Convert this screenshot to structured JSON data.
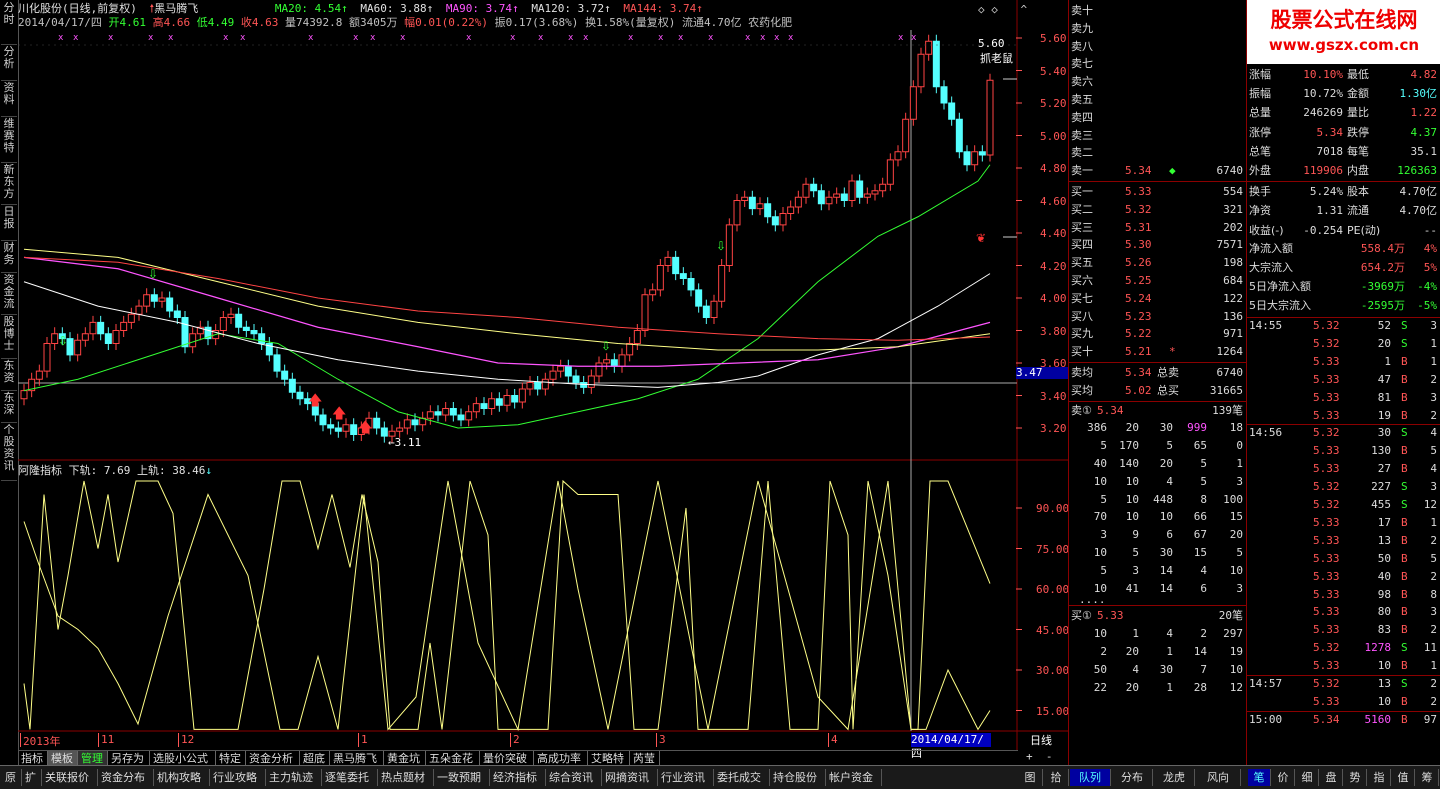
{
  "left_tabs": [
    "分时",
    "分析",
    "资料",
    "维赛特",
    "新东方",
    "日报",
    "财务",
    "资金流",
    "股博士",
    "东资",
    "东深",
    "个股资讯"
  ],
  "header": {
    "title": "川化股份(日线,前复权)",
    "signal": "黑马腾飞",
    "ma20": "MA20: 4.54",
    "ma60": "MA60: 3.88",
    "ma90": "MA90: 3.74",
    "ma120": "MA120: 3.72",
    "ma144": "MA144: 3.74"
  },
  "info": {
    "date": "2014/04/17/四",
    "open": "开4.61",
    "high": "高4.66",
    "low": "低4.49",
    "close": "收4.63",
    "volume": "量74392.8",
    "amount": "额3405万",
    "change": "幅0.01(0.22%)",
    "amplitude": "振0.17(3.68%)",
    "turnover": "换1.58%(量复权)",
    "float": "流通4.70亿",
    "sector": "农药化肥"
  },
  "price_axis": [
    "5.60",
    "5.40",
    "5.20",
    "5.00",
    "4.80",
    "4.60",
    "4.40",
    "4.20",
    "4.00",
    "3.80",
    "3.60",
    "3.40",
    "3.20"
  ],
  "current_marker": "3.47",
  "annotations": {
    "high": "5.60",
    "low": "3.11",
    "label_catch": "抓老鼠"
  },
  "indicator": {
    "name": "阿隆指标",
    "lower": "下轨: 7.69",
    "upper": "上轨: 38.46",
    "axis": [
      "90.00",
      "75.00",
      "60.00",
      "45.00",
      "30.00",
      "15.00"
    ]
  },
  "x_axis": {
    "labels": [
      "2013年",
      "11",
      "12",
      "1",
      "2",
      "3",
      "4"
    ],
    "cursor_date": "2014/04/17/四",
    "period": "日线"
  },
  "sub_tabs": [
    "指标",
    "模板",
    "管理",
    "另存为",
    "选股小公式",
    "特定",
    "资金分析",
    "超底",
    "黑马腾飞",
    "黄金坑",
    "五朵金花",
    "量价突破",
    "高成功率",
    "艾略特",
    "芮莹"
  ],
  "bottom_tabs": [
    "原",
    "扩",
    "关联报价",
    "资金分布",
    "机构攻略",
    "行业攻略",
    "主力轨迹",
    "逐笔委托",
    "热点题材",
    "一致预期",
    "经济指标",
    "综合资讯",
    "网摘资讯",
    "行业资讯",
    "委托成交",
    "持仓股份",
    "帐户资金"
  ],
  "right_bottom_tabs": [
    "图",
    "拾",
    "队列",
    "分布",
    "龙虎",
    "风向",
    "笔",
    "价",
    "细",
    "盘",
    "势",
    "指",
    "值",
    "筹"
  ],
  "order_book": {
    "sells": [
      {
        "label": "卖十",
        "price": "",
        "vol": ""
      },
      {
        "label": "卖九",
        "price": "",
        "vol": ""
      },
      {
        "label": "卖八",
        "price": "",
        "vol": ""
      },
      {
        "label": "卖七",
        "price": "",
        "vol": ""
      },
      {
        "label": "卖六",
        "price": "",
        "vol": ""
      },
      {
        "label": "卖五",
        "price": "",
        "vol": ""
      },
      {
        "label": "卖四",
        "price": "",
        "vol": ""
      },
      {
        "label": "卖三",
        "price": "",
        "vol": ""
      },
      {
        "label": "卖二",
        "price": "",
        "vol": ""
      },
      {
        "label": "卖一",
        "price": "5.34",
        "vol": "6740"
      }
    ],
    "buys": [
      {
        "label": "买一",
        "price": "5.33",
        "vol": "554"
      },
      {
        "label": "买二",
        "price": "5.32",
        "vol": "321"
      },
      {
        "label": "买三",
        "price": "5.31",
        "vol": "202"
      },
      {
        "label": "买四",
        "price": "5.30",
        "vol": "7571"
      },
      {
        "label": "买五",
        "price": "5.26",
        "vol": "198"
      },
      {
        "label": "买六",
        "price": "5.25",
        "vol": "684"
      },
      {
        "label": "买七",
        "price": "5.24",
        "vol": "122"
      },
      {
        "label": "买八",
        "price": "5.23",
        "vol": "136"
      },
      {
        "label": "买九",
        "price": "5.22",
        "vol": "971"
      },
      {
        "label": "买十",
        "price": "5.21",
        "vol": "1264"
      }
    ],
    "avg_sell": {
      "label": "卖均",
      "price": "5.34",
      "tlabel": "总卖",
      "total": "6740"
    },
    "avg_buy": {
      "label": "买均",
      "price": "5.02",
      "tlabel": "总买",
      "total": "31665"
    },
    "sell1_queue": {
      "label": "卖①",
      "price": "5.34",
      "count": "139笔"
    },
    "sell1_rows": [
      [
        "386",
        "20",
        "30",
        "999",
        "18"
      ],
      [
        "5",
        "170",
        "5",
        "65",
        "0"
      ],
      [
        "40",
        "140",
        "20",
        "5",
        "1"
      ],
      [
        "10",
        "10",
        "4",
        "5",
        "3"
      ],
      [
        "5",
        "10",
        "448",
        "8",
        "100"
      ],
      [
        "70",
        "10",
        "10",
        "66",
        "15"
      ],
      [
        "3",
        "9",
        "6",
        "67",
        "20"
      ],
      [
        "10",
        "5",
        "30",
        "15",
        "5"
      ],
      [
        "5",
        "3",
        "14",
        "4",
        "10"
      ],
      [
        "10",
        "41",
        "14",
        "6",
        "3"
      ]
    ],
    "ellipsis": "....",
    "buy1_queue": {
      "label": "买①",
      "price": "5.33",
      "count": "20笔"
    },
    "buy1_rows": [
      [
        "10",
        "1",
        "4",
        "2",
        "297"
      ],
      [
        "2",
        "20",
        "1",
        "14",
        "19"
      ],
      [
        "50",
        "4",
        "30",
        "7",
        "10"
      ],
      [
        "22",
        "20",
        "1",
        "28",
        "12"
      ]
    ]
  },
  "watermark": {
    "title": "股票公式在线网",
    "url": "www.gszx.com.cn"
  },
  "stats": [
    {
      "l1": "涨幅",
      "v1": "10.10%",
      "l2": "最低",
      "v2": "4.82"
    },
    {
      "l1": "振幅",
      "v1": "10.72%",
      "l2": "金额",
      "v2": "1.30亿"
    },
    {
      "l1": "总量",
      "v1": "246269",
      "l2": "量比",
      "v2": "1.22"
    },
    {
      "l1": "涨停",
      "v1": "5.34",
      "l2": "跌停",
      "v2": "4.37"
    },
    {
      "l1": "总笔",
      "v1": "7018",
      "l2": "每笔",
      "v2": "35.1"
    },
    {
      "l1": "外盘",
      "v1": "119906",
      "l2": "内盘",
      "v2": "126363"
    },
    {
      "l1": "换手",
      "v1": "5.24%",
      "l2": "股本",
      "v2": "4.70亿"
    },
    {
      "l1": "净资",
      "v1": "1.31",
      "l2": "流通",
      "v2": "4.70亿"
    },
    {
      "l1": "收益(-)",
      "v1": "-0.254",
      "l2": "PE(动)",
      "v2": "--"
    }
  ],
  "flows": [
    {
      "label": "净流入额",
      "value": "558.4万",
      "pct": "4%"
    },
    {
      "label": "大宗流入",
      "value": "654.2万",
      "pct": "5%"
    },
    {
      "label": "5日净流入额",
      "value": "-3969万",
      "pct": "-4%"
    },
    {
      "label": "5日大宗流入",
      "value": "-2595万",
      "pct": "-5%"
    }
  ],
  "ticks": [
    {
      "t": "14:55",
      "p": "5.32",
      "v": "52",
      "d": "S",
      "n": "3"
    },
    {
      "t": "",
      "p": "5.32",
      "v": "20",
      "d": "S",
      "n": "1"
    },
    {
      "t": "",
      "p": "5.33",
      "v": "1",
      "d": "B",
      "n": "1"
    },
    {
      "t": "",
      "p": "5.33",
      "v": "47",
      "d": "B",
      "n": "2"
    },
    {
      "t": "",
      "p": "5.33",
      "v": "81",
      "d": "B",
      "n": "3"
    },
    {
      "t": "",
      "p": "5.33",
      "v": "19",
      "d": "B",
      "n": "2"
    },
    {
      "t": "14:56",
      "p": "5.32",
      "v": "30",
      "d": "S",
      "n": "4"
    },
    {
      "t": "",
      "p": "5.33",
      "v": "130",
      "d": "B",
      "n": "5"
    },
    {
      "t": "",
      "p": "5.33",
      "v": "27",
      "d": "B",
      "n": "4"
    },
    {
      "t": "",
      "p": "5.32",
      "v": "227",
      "d": "S",
      "n": "3"
    },
    {
      "t": "",
      "p": "5.32",
      "v": "455",
      "d": "S",
      "n": "12"
    },
    {
      "t": "",
      "p": "5.33",
      "v": "17",
      "d": "B",
      "n": "1"
    },
    {
      "t": "",
      "p": "5.33",
      "v": "13",
      "d": "B",
      "n": "2"
    },
    {
      "t": "",
      "p": "5.33",
      "v": "50",
      "d": "B",
      "n": "5"
    },
    {
      "t": "",
      "p": "5.33",
      "v": "40",
      "d": "B",
      "n": "2"
    },
    {
      "t": "",
      "p": "5.33",
      "v": "98",
      "d": "B",
      "n": "8"
    },
    {
      "t": "",
      "p": "5.33",
      "v": "80",
      "d": "B",
      "n": "3"
    },
    {
      "t": "",
      "p": "5.33",
      "v": "83",
      "d": "B",
      "n": "2"
    },
    {
      "t": "",
      "p": "5.32",
      "v": "1278",
      "d": "S",
      "n": "11"
    },
    {
      "t": "",
      "p": "5.33",
      "v": "10",
      "d": "B",
      "n": "1"
    },
    {
      "t": "14:57",
      "p": "5.32",
      "v": "13",
      "d": "S",
      "n": "2"
    },
    {
      "t": "",
      "p": "5.33",
      "v": "10",
      "d": "B",
      "n": "2"
    },
    {
      "t": "15:00",
      "p": "5.34",
      "v": "5160",
      "d": "B",
      "n": "97"
    }
  ],
  "colors": {
    "up": "#ff4444",
    "down": "#55ffff",
    "ma20": "#33ff33",
    "ma60": "#ffffff",
    "ma90": "#ff55ff",
    "ma120": "#ffff88",
    "ma144": "#ff4444"
  },
  "chart_data": {
    "type": "candlestick",
    "description_axis_range": [
      3.1,
      5.65
    ],
    "indicator_range": [
      7.69,
      100
    ]
  }
}
